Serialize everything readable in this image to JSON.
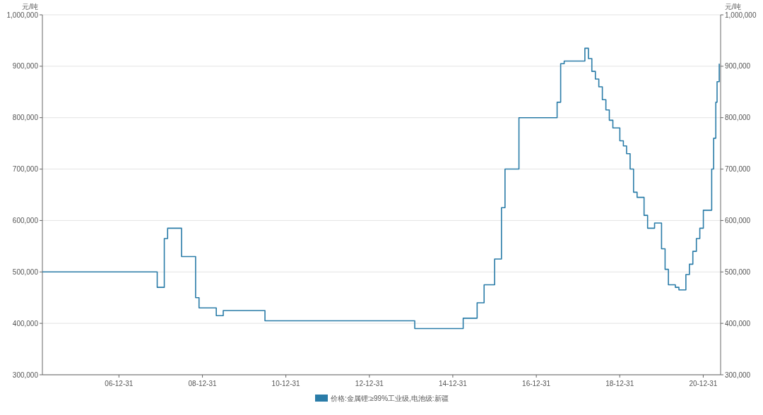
{
  "chart_data": {
    "type": "step",
    "ylabel": "元/吨",
    "y2label": "元/吨",
    "grid": "y",
    "legend": "bottom",
    "xlim": [
      "2005-03",
      "2021-06"
    ],
    "xticks": [
      {
        "value": "2006-12-31",
        "label": "06-12-31"
      },
      {
        "value": "2008-12-31",
        "label": "08-12-31"
      },
      {
        "value": "2010-12-31",
        "label": "10-12-31"
      },
      {
        "value": "2012-12-31",
        "label": "12-12-31"
      },
      {
        "value": "2014-12-31",
        "label": "14-12-31"
      },
      {
        "value": "2016-12-31",
        "label": "16-12-31"
      },
      {
        "value": "2018-12-31",
        "label": "18-12-31"
      },
      {
        "value": "2020-12-31",
        "label": "20-12-31"
      }
    ],
    "ylim": [
      300000,
      1000000
    ],
    "yticks": [
      {
        "value": 300000,
        "label": "300,000"
      },
      {
        "value": 400000,
        "label": "400,000"
      },
      {
        "value": 500000,
        "label": "500,000"
      },
      {
        "value": 600000,
        "label": "600,000"
      },
      {
        "value": 700000,
        "label": "700,000"
      },
      {
        "value": 800000,
        "label": "800,000"
      },
      {
        "value": 900000,
        "label": "900,000"
      },
      {
        "value": 1000000,
        "label": "1,000,000"
      }
    ],
    "y2lim": [
      300000,
      1000000
    ],
    "y2ticks": [
      {
        "value": 300000,
        "label": "300,000"
      },
      {
        "value": 400000,
        "label": "400,000"
      },
      {
        "value": 500000,
        "label": "500,000"
      },
      {
        "value": 600000,
        "label": "600,000"
      },
      {
        "value": 700000,
        "label": "700,000"
      },
      {
        "value": 800000,
        "label": "800,000"
      },
      {
        "value": 900000,
        "label": "900,000"
      },
      {
        "value": 1000000,
        "label": "1,000,000"
      }
    ],
    "x": [
      "2005-03",
      "2007-12",
      "2008-02",
      "2008-03",
      "2008-07",
      "2008-11",
      "2008-12",
      "2009-05",
      "2009-07",
      "2010-07",
      "2014-02",
      "2015-04",
      "2015-08",
      "2015-10",
      "2016-01",
      "2016-03",
      "2016-04",
      "2016-08",
      "2017-07",
      "2017-08",
      "2017-09",
      "2018-03",
      "2018-04",
      "2018-05",
      "2018-06",
      "2018-07",
      "2018-08",
      "2018-09",
      "2018-10",
      "2018-11",
      "2019-01",
      "2019-02",
      "2019-03",
      "2019-04",
      "2019-05",
      "2019-06",
      "2019-08",
      "2019-09",
      "2019-11",
      "2020-01",
      "2020-02",
      "2020-03",
      "2020-05",
      "2020-06",
      "2020-08",
      "2020-09",
      "2020-10",
      "2020-11",
      "2020-12",
      "2021-01",
      "2021-03-15",
      "2021-04",
      "2021-04-20",
      "2021-05",
      "2021-05-20"
    ],
    "series": [
      {
        "name": "价格:金属锂:≥99%工业级,电池级:新疆",
        "color": "#2a7ca8",
        "values": [
          500000,
          470000,
          565000,
          585000,
          530000,
          450000,
          430000,
          415000,
          425000,
          405000,
          390000,
          410000,
          440000,
          475000,
          525000,
          625000,
          700000,
          800000,
          830000,
          905000,
          910000,
          935000,
          915000,
          890000,
          875000,
          860000,
          835000,
          815000,
          795000,
          780000,
          755000,
          745000,
          730000,
          700000,
          655000,
          645000,
          610000,
          585000,
          595000,
          545000,
          505000,
          475000,
          470000,
          465000,
          495000,
          515000,
          540000,
          565000,
          585000,
          620000,
          700000,
          760000,
          830000,
          870000,
          905000
        ]
      }
    ]
  }
}
